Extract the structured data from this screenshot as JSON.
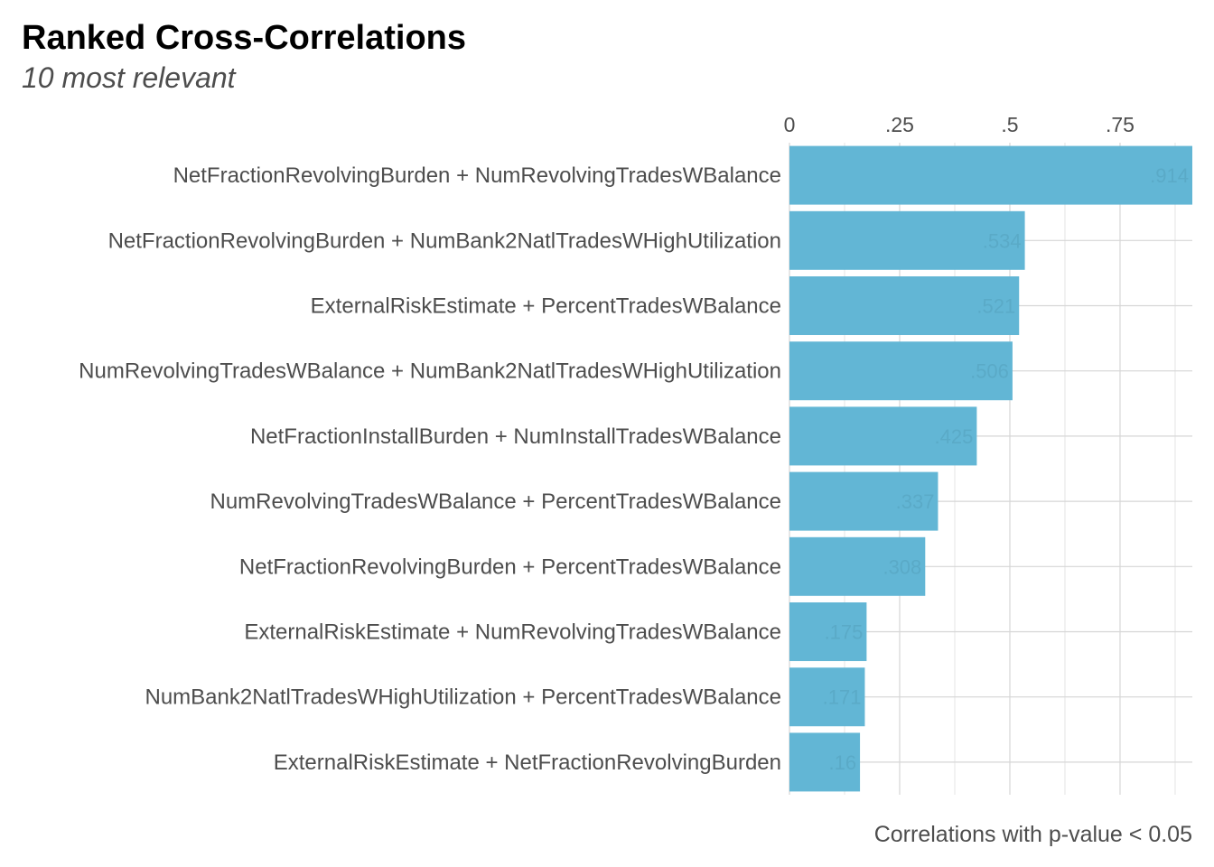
{
  "chart_data": {
    "type": "bar",
    "orientation": "horizontal",
    "title": "Ranked Cross-Correlations",
    "subtitle": "10 most relevant",
    "caption": "Correlations with p-value < 0.05",
    "xlabel": "",
    "ylabel": "",
    "x_axis_position": "top",
    "xlim": [
      0,
      0.914
    ],
    "x_ticks": [
      0,
      0.25,
      0.5,
      0.75
    ],
    "x_tick_labels": [
      "0",
      ".25",
      ".5",
      ".75"
    ],
    "grid": true,
    "legend": "none",
    "colors": {
      "bar": "#62b6d5",
      "data_label": "#5aa9c6",
      "text": "#4d4d4d",
      "title": "#000000"
    },
    "categories": [
      "NetFractionRevolvingBurden + NumRevolvingTradesWBalance",
      "NetFractionRevolvingBurden + NumBank2NatlTradesWHighUtilization",
      "ExternalRiskEstimate + PercentTradesWBalance",
      "NumRevolvingTradesWBalance + NumBank2NatlTradesWHighUtilization",
      "NetFractionInstallBurden + NumInstallTradesWBalance",
      "NumRevolvingTradesWBalance + PercentTradesWBalance",
      "NetFractionRevolvingBurden + PercentTradesWBalance",
      "ExternalRiskEstimate + NumRevolvingTradesWBalance",
      "NumBank2NatlTradesWHighUtilization + PercentTradesWBalance",
      "ExternalRiskEstimate + NetFractionRevolvingBurden"
    ],
    "values": [
      0.914,
      0.534,
      0.521,
      0.506,
      0.425,
      0.337,
      0.308,
      0.175,
      0.171,
      0.16
    ],
    "value_labels": [
      ".914",
      ".534",
      ".521",
      ".506",
      ".425",
      ".337",
      ".308",
      ".175",
      ".171",
      ".16"
    ]
  }
}
